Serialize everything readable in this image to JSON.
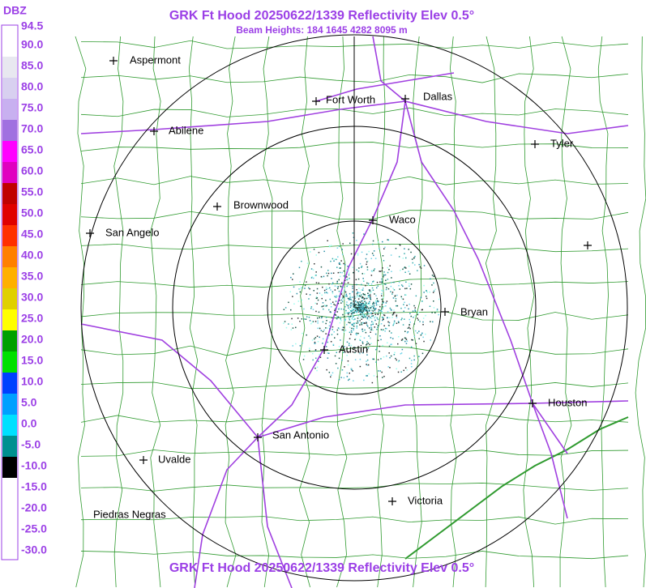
{
  "header": {
    "title": "GRK Ft Hood 20250622/1339 Reflectivity Elev 0.5°",
    "subtitle": "Beam Heights: 184 1645 4282 8095 m",
    "footer": "GRK Ft Hood 20250622/1339 Reflectivity Elev 0.5°"
  },
  "legend": {
    "unit": "DBZ",
    "labels": [
      "94.5",
      "90.0",
      "85.0",
      "80.0",
      "75.0",
      "70.0",
      "65.0",
      "60.0",
      "55.0",
      "50.0",
      "45.0",
      "40.0",
      "35.0",
      "30.0",
      "25.0",
      "20.0",
      "15.0",
      "10.0",
      "5.0",
      "0.0",
      "-5.0",
      "-10.0",
      "-15.0",
      "-20.0",
      "-25.0",
      "-30.0"
    ]
  },
  "cities": [
    "Aspermont",
    "Fort Worth",
    "Dallas",
    "Abilene",
    "Tyler",
    "Brownwood",
    "Waco",
    "San Angelo",
    "Bryan",
    "Austin",
    "Houston",
    "San Antonio",
    "Uvalde",
    "Victoria",
    "Piedras Negras"
  ]
}
